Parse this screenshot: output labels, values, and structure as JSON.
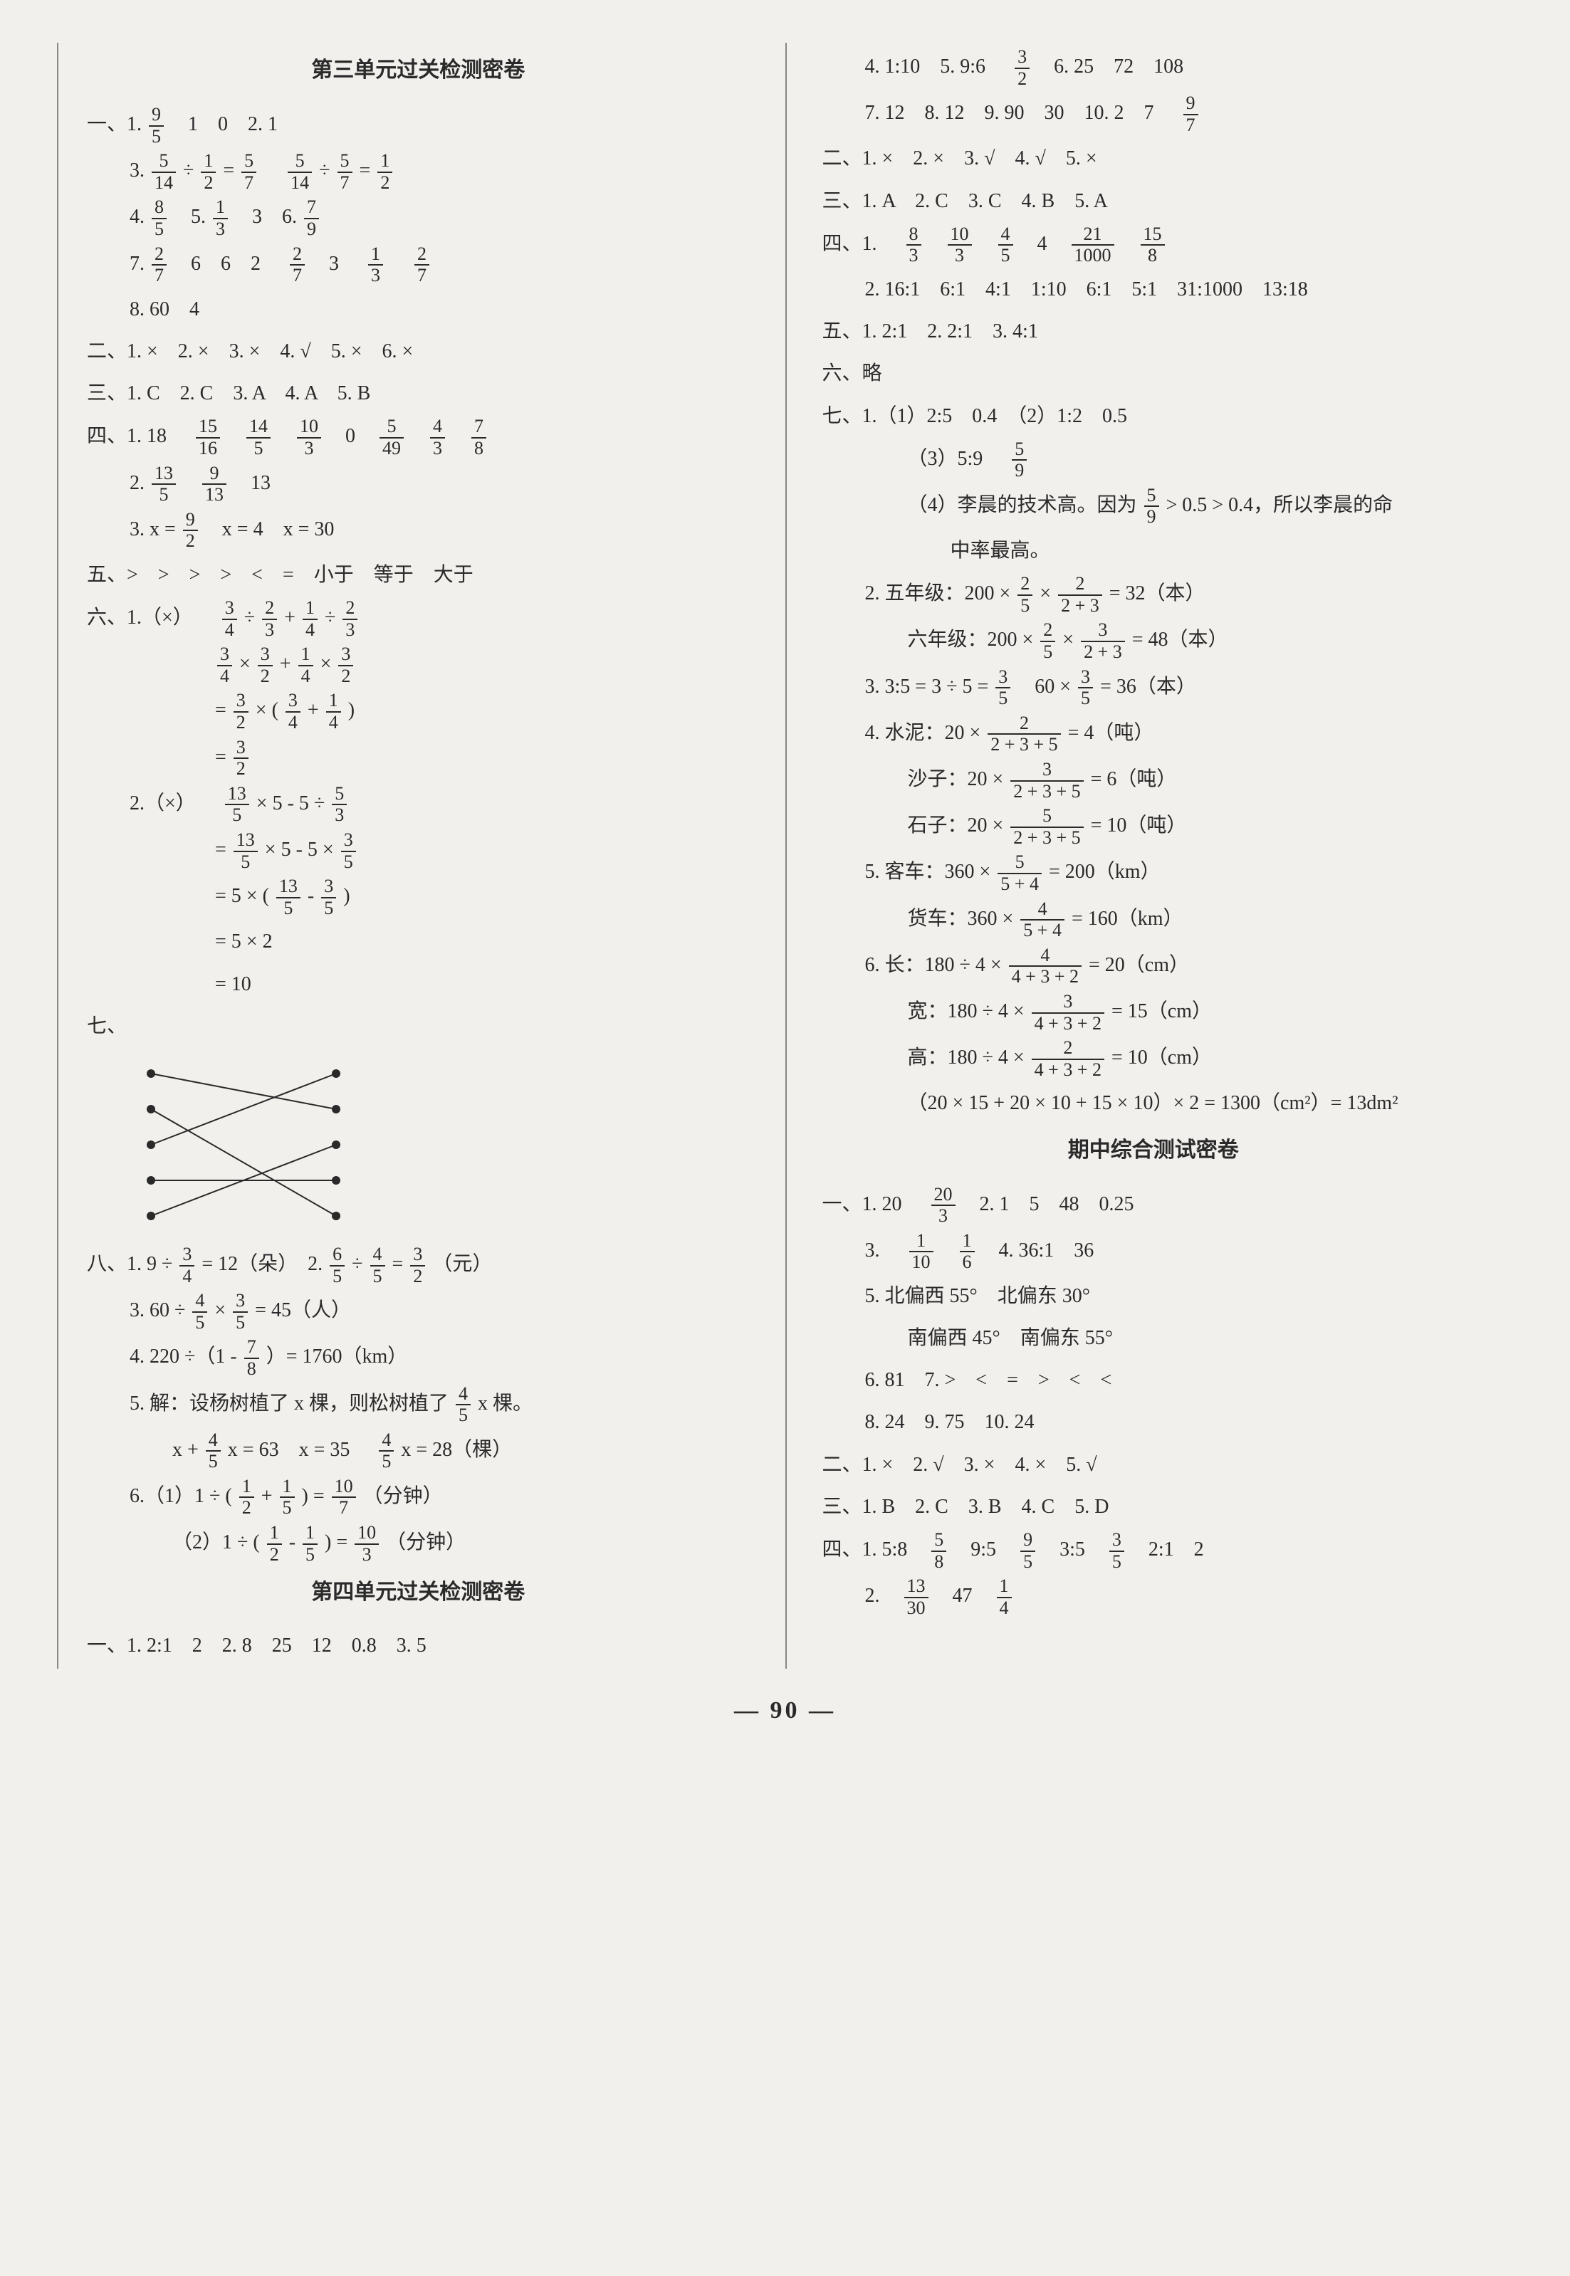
{
  "page_number": "— 90 —",
  "left": {
    "title1": "第三单元过关检测密卷",
    "s1_1": "一、1.",
    "f_9_5": {
      "n": "9",
      "d": "5"
    },
    "s1_1b": "1　0　2. 1",
    "s1_3": "3.",
    "f_5_14": {
      "n": "5",
      "d": "14"
    },
    "div": "÷",
    "f_1_2": {
      "n": "1",
      "d": "2"
    },
    "eq": "=",
    "f_5_7": {
      "n": "5",
      "d": "7"
    },
    "s1_4": "4.",
    "f_8_5": {
      "n": "8",
      "d": "5"
    },
    "s1_5": "5.",
    "f_1_3": {
      "n": "1",
      "d": "3"
    },
    "s1_5b": "3　6.",
    "f_7_9a": {
      "n": "7",
      "d": "9"
    },
    "s1_7": "7.",
    "f_2_7": {
      "n": "2",
      "d": "7"
    },
    "s1_7b": "6　6　2",
    "s1_7c": "3",
    "s1_8": "8. 60　4",
    "s2": "二、1. ×　2. ×　3. ×　4. √　5. ×　6. ×",
    "s3": "三、1. C　2. C　3. A　4. A　5. B",
    "s4_1": "四、1. 18",
    "f_15_16": {
      "n": "15",
      "d": "16"
    },
    "f_14_5": {
      "n": "14",
      "d": "5"
    },
    "f_10_3": {
      "n": "10",
      "d": "3"
    },
    "s4_1b": "0",
    "f_5_49": {
      "n": "5",
      "d": "49"
    },
    "f_4_3": {
      "n": "4",
      "d": "3"
    },
    "f_7_8": {
      "n": "7",
      "d": "8"
    },
    "s4_2": "2.",
    "f_13_5": {
      "n": "13",
      "d": "5"
    },
    "f_9_13": {
      "n": "9",
      "d": "13"
    },
    "s4_2b": "13",
    "s4_3": "3. x =",
    "f_9_2": {
      "n": "9",
      "d": "2"
    },
    "s4_3b": "x = 4　x = 30",
    "s5": "五、>　>　>　>　<　=　小于　等于　大于",
    "s6_1": "六、1.（×）",
    "f_3_4": {
      "n": "3",
      "d": "4"
    },
    "f_2_3": {
      "n": "2",
      "d": "3"
    },
    "f_1_4": {
      "n": "1",
      "d": "4"
    },
    "plus": "+",
    "s6_1a": "=",
    "f_3_2": {
      "n": "3",
      "d": "2"
    },
    "times": "×",
    "lp": "(",
    "rp": ")",
    "s6_2": "2.（×）",
    "s6_2a": "× 5 - 5 ÷",
    "f_5_3": {
      "n": "5",
      "d": "3"
    },
    "s6_2b": "× 5 - 5 ×",
    "f_3_5": {
      "n": "3",
      "d": "5"
    },
    "s6_2c": "= 5 ×",
    "minus": "-",
    "s6_2d": "= 5 × 2",
    "s6_2e": "= 10",
    "s7": "七、",
    "s8_1": "八、1. 9 ÷",
    "s8_1b": "= 12（朵）　2.",
    "f_6_5": {
      "n": "6",
      "d": "5"
    },
    "f_4_5": {
      "n": "4",
      "d": "5"
    },
    "s8_2b": "（元）",
    "s8_3": "3. 60 ÷",
    "s8_3b": "= 45（人）",
    "s8_4": "4. 220 ÷（1 -",
    "s8_4b": "）= 1760（km）",
    "s8_5": "5. 解：设杨树植了 x 棵，则松树植了",
    "s8_5b": "x 棵。",
    "s8_5c": "x +",
    "s8_5d": "x = 63　x = 35",
    "s8_5e": "x = 28（棵）",
    "s8_6_1": "6.（1）1 ÷",
    "f_1_5": {
      "n": "1",
      "d": "5"
    },
    "f_10_7": {
      "n": "10",
      "d": "7"
    },
    "s8_6_1b": "（分钟）",
    "s8_6_2": "（2）1 ÷",
    "f_10_3b": {
      "n": "10",
      "d": "3"
    },
    "title2": "第四单元过关检测密卷",
    "s4u_1": "一、1. 2:1　2　2. 8　25　12　0.8　3. 5"
  },
  "right": {
    "r1_4": "4. 1:10　5. 9:6",
    "f_3_2": {
      "n": "3",
      "d": "2"
    },
    "r1_4b": "6. 25　72　108",
    "r1_7": "7. 12　8. 12　9. 90　30　10. 2　7",
    "f_9_7": {
      "n": "9",
      "d": "7"
    },
    "r2": "二、1. ×　2. ×　3. √　4. √　5. ×",
    "r3": "三、1. A　2. C　3. C　4. B　5. A",
    "r4_1": "四、1.",
    "f_8_3": {
      "n": "8",
      "d": "3"
    },
    "f_10_3": {
      "n": "10",
      "d": "3"
    },
    "f_4_5": {
      "n": "4",
      "d": "5"
    },
    "r4_1b": "4",
    "f_21_1000": {
      "n": "21",
      "d": "1000"
    },
    "f_15_8": {
      "n": "15",
      "d": "8"
    },
    "r4_2": "2. 16:1　6:1　4:1　1:10　6:1　5:1　31:1000　13:18",
    "r5": "五、1. 2:1　2. 2:1　3. 4:1",
    "r6": "六、略",
    "r7_1": "七、1.（1）2:5　0.4　（2）1:2　0.5",
    "r7_3": "（3）5:9",
    "f_5_9": {
      "n": "5",
      "d": "9"
    },
    "r7_4": "（4）李晨的技术高。因为",
    "r7_4b": "> 0.5 > 0.4，所以李晨的命",
    "r7_4c": "中率最高。",
    "r7_2a": "2. 五年级：200 ×",
    "f_2_5": {
      "n": "2",
      "d": "5"
    },
    "times": "×",
    "f_2_23": {
      "n": "2",
      "d": "2 + 3"
    },
    "r7_2ab": "= 32（本）",
    "r7_2b": "六年级：200 ×",
    "f_3_23": {
      "n": "3",
      "d": "2 + 3"
    },
    "r7_2bb": "= 48（本）",
    "r7_3a": "3. 3:5 = 3 ÷ 5 =",
    "f_3_5": {
      "n": "3",
      "d": "5"
    },
    "r7_3b": "60 ×",
    "r7_3c": "= 36（本）",
    "r7_4a": "4. 水泥：20 ×",
    "f_2_235": {
      "n": "2",
      "d": "2 + 3 + 5"
    },
    "r7_4ab": "= 4（吨）",
    "r7_4bb": "沙子：20 ×",
    "f_3_235": {
      "n": "3",
      "d": "2 + 3 + 5"
    },
    "r7_4bc": "= 6（吨）",
    "r7_4cb": "石子：20 ×",
    "f_5_235": {
      "n": "5",
      "d": "2 + 3 + 5"
    },
    "r7_4cc": "= 10（吨）",
    "r7_5a": "5. 客车：360 ×",
    "f_5_54": {
      "n": "5",
      "d": "5 + 4"
    },
    "r7_5ab": "= 200（km）",
    "r7_5b": "货车：360 ×",
    "f_4_54": {
      "n": "4",
      "d": "5 + 4"
    },
    "r7_5bb": "= 160（km）",
    "r7_6a": "6. 长：180 ÷ 4 ×",
    "f_4_432": {
      "n": "4",
      "d": "4 + 3 + 2"
    },
    "r7_6ab": "= 20（cm）",
    "r7_6b": "宽：180 ÷ 4 ×",
    "f_3_432": {
      "n": "3",
      "d": "4 + 3 + 2"
    },
    "r7_6bb": "= 15（cm）",
    "r7_6c": "高：180 ÷ 4 ×",
    "f_2_432": {
      "n": "2",
      "d": "4 + 3 + 2"
    },
    "r7_6cb": "= 10（cm）",
    "r7_6d": "（20 × 15 + 20 × 10 + 15 × 10）× 2 = 1300（cm²）= 13dm²",
    "title3": "期中综合测试密卷",
    "m1_1": "一、1. 20",
    "f_20_3": {
      "n": "20",
      "d": "3"
    },
    "m1_1b": "2. 1　5　48　0.25",
    "m1_3": "3.",
    "f_1_10": {
      "n": "1",
      "d": "10"
    },
    "f_1_6": {
      "n": "1",
      "d": "6"
    },
    "m1_4": "4. 36:1　36",
    "m1_5": "5. 北偏西 55°　北偏东 30°",
    "m1_5b": "南偏西 45°　南偏东 55°",
    "m1_6": "6. 81　7. >　<　=　>　<　<",
    "m1_8": "8. 24　9. 75　10. 24",
    "m2": "二、1. ×　2. √　3. ×　4. ×　5. √",
    "m3": "三、1. B　2. C　3. B　4. C　5. D",
    "m4_1": "四、1. 5:8",
    "f_5_8": {
      "n": "5",
      "d": "8"
    },
    "m4_1b": "9:5",
    "f_9_5": {
      "n": "9",
      "d": "5"
    },
    "m4_1c": "3:5",
    "m4_1d": "2:1　2",
    "m4_2": "2.",
    "f_13_30": {
      "n": "13",
      "d": "30"
    },
    "m4_2b": "47",
    "f_1_4": {
      "n": "1",
      "d": "4"
    }
  },
  "matching": {
    "left_dots_y": [
      20,
      70,
      120,
      170,
      220
    ],
    "right_dots_y": [
      20,
      70,
      120,
      170,
      220
    ],
    "connections": [
      [
        0,
        1
      ],
      [
        1,
        4
      ],
      [
        2,
        0
      ],
      [
        3,
        3
      ],
      [
        4,
        2
      ]
    ],
    "dot_color": "#2a2a2a",
    "line_color": "#2a2a2a"
  }
}
